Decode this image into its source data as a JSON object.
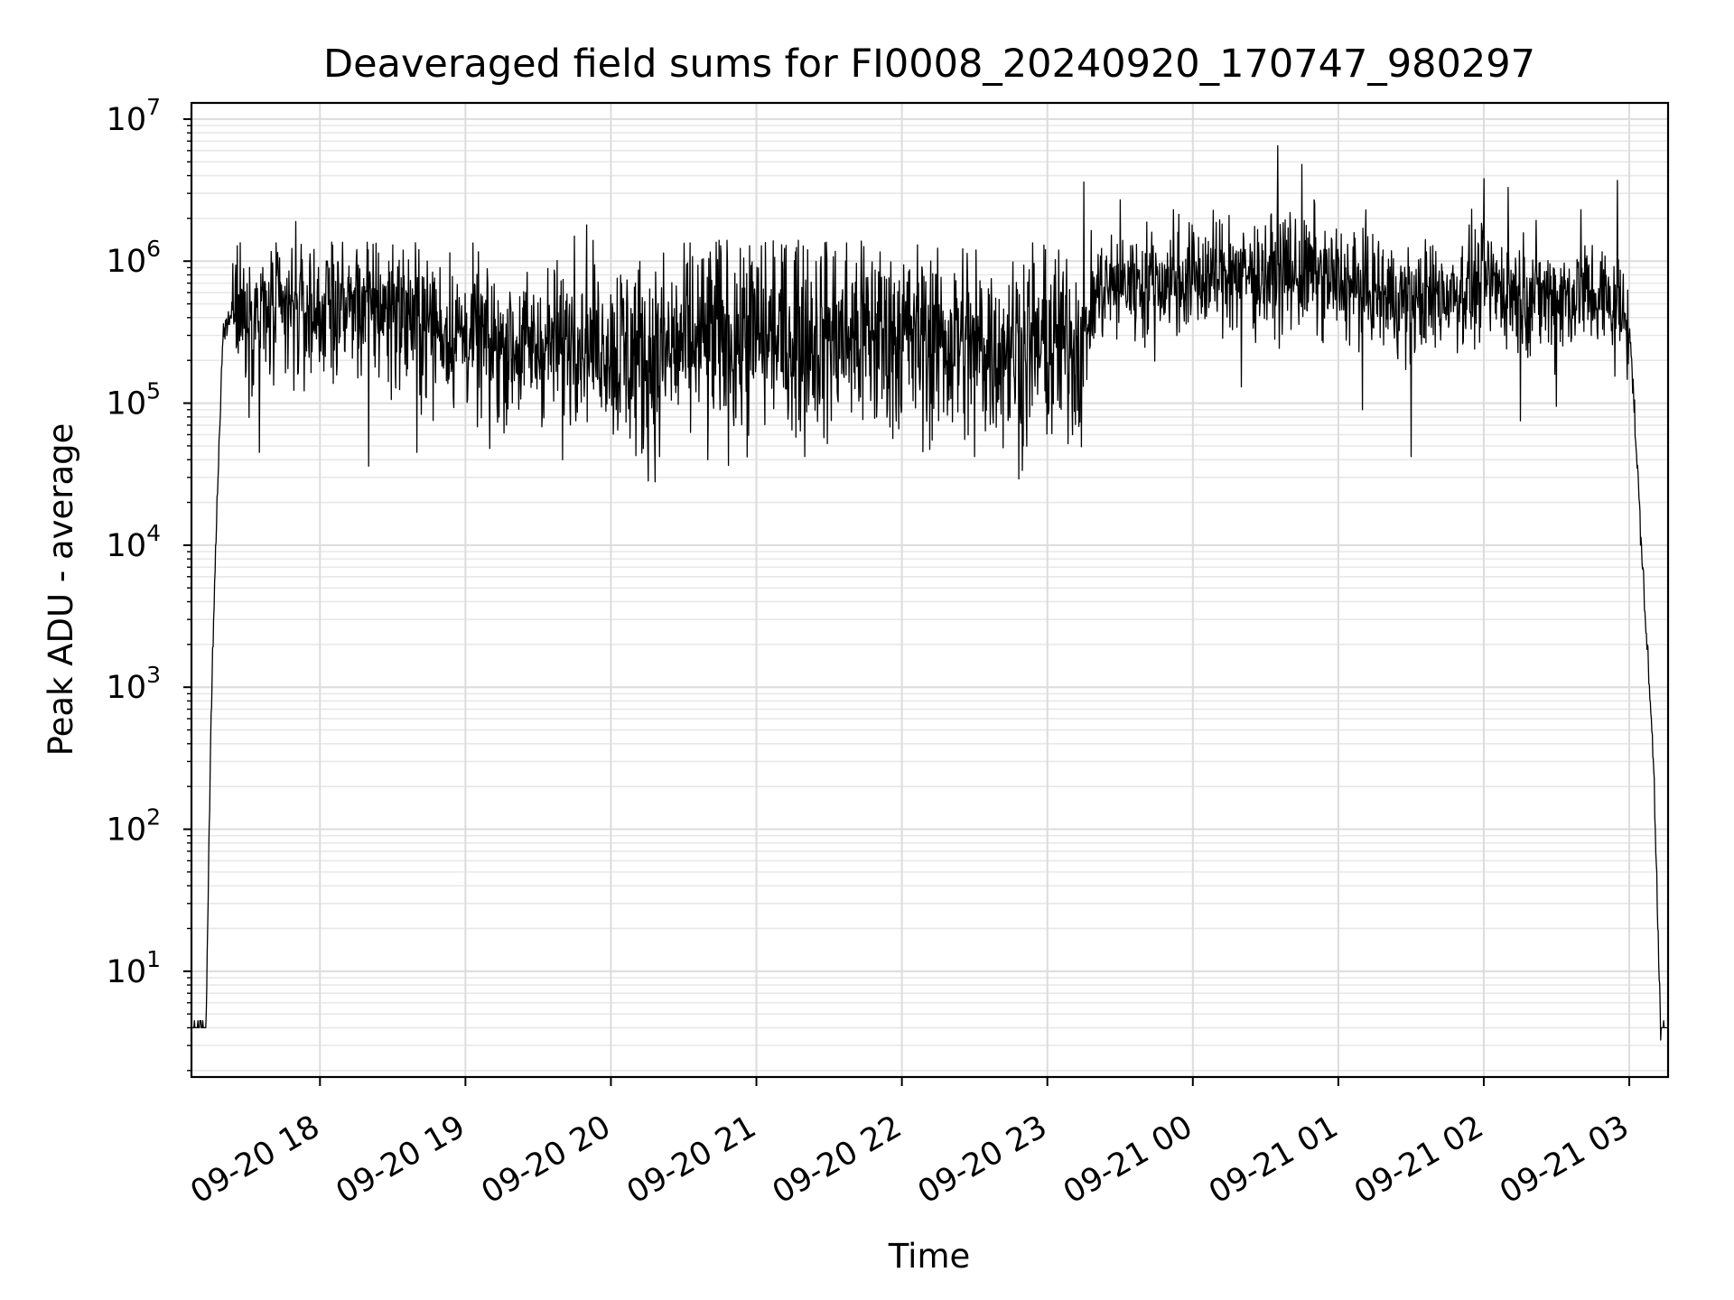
{
  "chart_data": {
    "type": "line",
    "title": "Deaveraged field sums for FI0008_20240920_170747_980297",
    "xlabel": "Time",
    "ylabel": "Peak ADU - average",
    "yscale": "log",
    "ylim": [
      1.8,
      13000000
    ],
    "xlim": [
      "09-20 17:07",
      "09-21 03:16"
    ],
    "grid": true,
    "color": "#000000",
    "x_ticks": [
      "09-20 18",
      "09-20 19",
      "09-20 20",
      "09-20 21",
      "09-20 22",
      "09-20 23",
      "09-21 00",
      "09-21 01",
      "09-21 02",
      "09-21 03"
    ],
    "y_ticks": [
      {
        "base": "10",
        "exp": "1"
      },
      {
        "base": "10",
        "exp": "2"
      },
      {
        "base": "10",
        "exp": "3"
      },
      {
        "base": "10",
        "exp": "4"
      },
      {
        "base": "10",
        "exp": "5"
      },
      {
        "base": "10",
        "exp": "6"
      },
      {
        "base": "10",
        "exp": "7"
      }
    ],
    "series": [
      {
        "points": [
          [
            "09-20 17:07",
            4
          ],
          [
            "09-20 17:13",
            4
          ],
          [
            "09-20 17:15",
            500
          ],
          [
            "09-20 17:17",
            10000
          ],
          [
            "09-20 17:20",
            300000
          ],
          [
            "09-20 17:24",
            500000
          ],
          [
            "09-20 17:30",
            450000
          ],
          [
            "09-20 17:45",
            400000
          ],
          [
            "09-20 18:00",
            450000
          ],
          [
            "09-20 18:15",
            500000
          ],
          [
            "09-20 18:30",
            450000
          ],
          [
            "09-20 18:45",
            350000
          ],
          [
            "09-20 19:00",
            300000
          ],
          [
            "09-20 19:15",
            250000
          ],
          [
            "09-20 19:30",
            250000
          ],
          [
            "09-20 19:45",
            300000
          ],
          [
            "09-20 20:00",
            250000
          ],
          [
            "09-20 20:15",
            200000
          ],
          [
            "09-20 20:30",
            250000
          ],
          [
            "09-20 20:45",
            280000
          ],
          [
            "09-20 21:00",
            300000
          ],
          [
            "09-20 21:15",
            300000
          ],
          [
            "09-20 21:30",
            300000
          ],
          [
            "09-20 21:45",
            300000
          ],
          [
            "09-20 22:00",
            300000
          ],
          [
            "09-20 22:15",
            280000
          ],
          [
            "09-20 22:30",
            260000
          ],
          [
            "09-20 22:45",
            250000
          ],
          [
            "09-20 23:00",
            250000
          ],
          [
            "09-20 23:15",
            280000
          ],
          [
            "09-20 23:20",
            600000
          ],
          [
            "09-20 23:30",
            700000
          ],
          [
            "09-20 23:45",
            700000
          ],
          [
            "09-21 00:00",
            750000
          ],
          [
            "09-21 00:15",
            800000
          ],
          [
            "09-21 00:30",
            800000
          ],
          [
            "09-21 00:45",
            800000
          ],
          [
            "09-21 01:00",
            700000
          ],
          [
            "09-21 01:15",
            600000
          ],
          [
            "09-21 01:30",
            500000
          ],
          [
            "09-21 01:45",
            600000
          ],
          [
            "09-21 02:00",
            700000
          ],
          [
            "09-21 02:15",
            600000
          ],
          [
            "09-21 02:30",
            550000
          ],
          [
            "09-21 02:45",
            600000
          ],
          [
            "09-21 03:00",
            400000
          ],
          [
            "09-21 03:05",
            10000
          ],
          [
            "09-21 03:10",
            300
          ],
          [
            "09-21 03:13",
            4
          ],
          [
            "09-21 03:16",
            4
          ]
        ],
        "peaks": [
          [
            "09-20 17:50",
            1900000
          ],
          [
            "09-20 18:30",
            1300000
          ],
          [
            "09-20 19:45",
            1500000
          ],
          [
            "09-20 19:50",
            1800000
          ],
          [
            "09-20 23:15",
            3600000
          ],
          [
            "09-20 23:30",
            2700000
          ],
          [
            "09-20 23:52",
            2300000
          ],
          [
            "09-21 00:15",
            2100000
          ],
          [
            "09-21 00:35",
            6500000
          ],
          [
            "09-21 00:40",
            2200000
          ],
          [
            "09-21 00:45",
            4800000
          ],
          [
            "09-21 00:50",
            2700000
          ],
          [
            "09-21 02:00",
            3800000
          ],
          [
            "09-21 02:10",
            3300000
          ],
          [
            "09-21 02:40",
            2300000
          ],
          [
            "09-21 02:55",
            3700000
          ]
        ],
        "troughs": [
          [
            "09-20 17:35",
            45000
          ],
          [
            "09-20 18:20",
            36000
          ],
          [
            "09-20 18:40",
            45000
          ],
          [
            "09-20 19:10",
            48000
          ],
          [
            "09-20 19:40",
            40000
          ],
          [
            "09-20 20:20",
            42000
          ],
          [
            "09-20 20:40",
            40000
          ],
          [
            "09-20 21:20",
            42000
          ],
          [
            "09-20 22:30",
            42000
          ],
          [
            "09-20 22:50",
            50000
          ],
          [
            "09-21 00:20",
            130000
          ],
          [
            "09-21 01:10",
            90000
          ],
          [
            "09-21 01:30",
            42000
          ],
          [
            "09-21 02:15",
            75000
          ],
          [
            "09-21 02:30",
            95000
          ]
        ]
      }
    ]
  }
}
